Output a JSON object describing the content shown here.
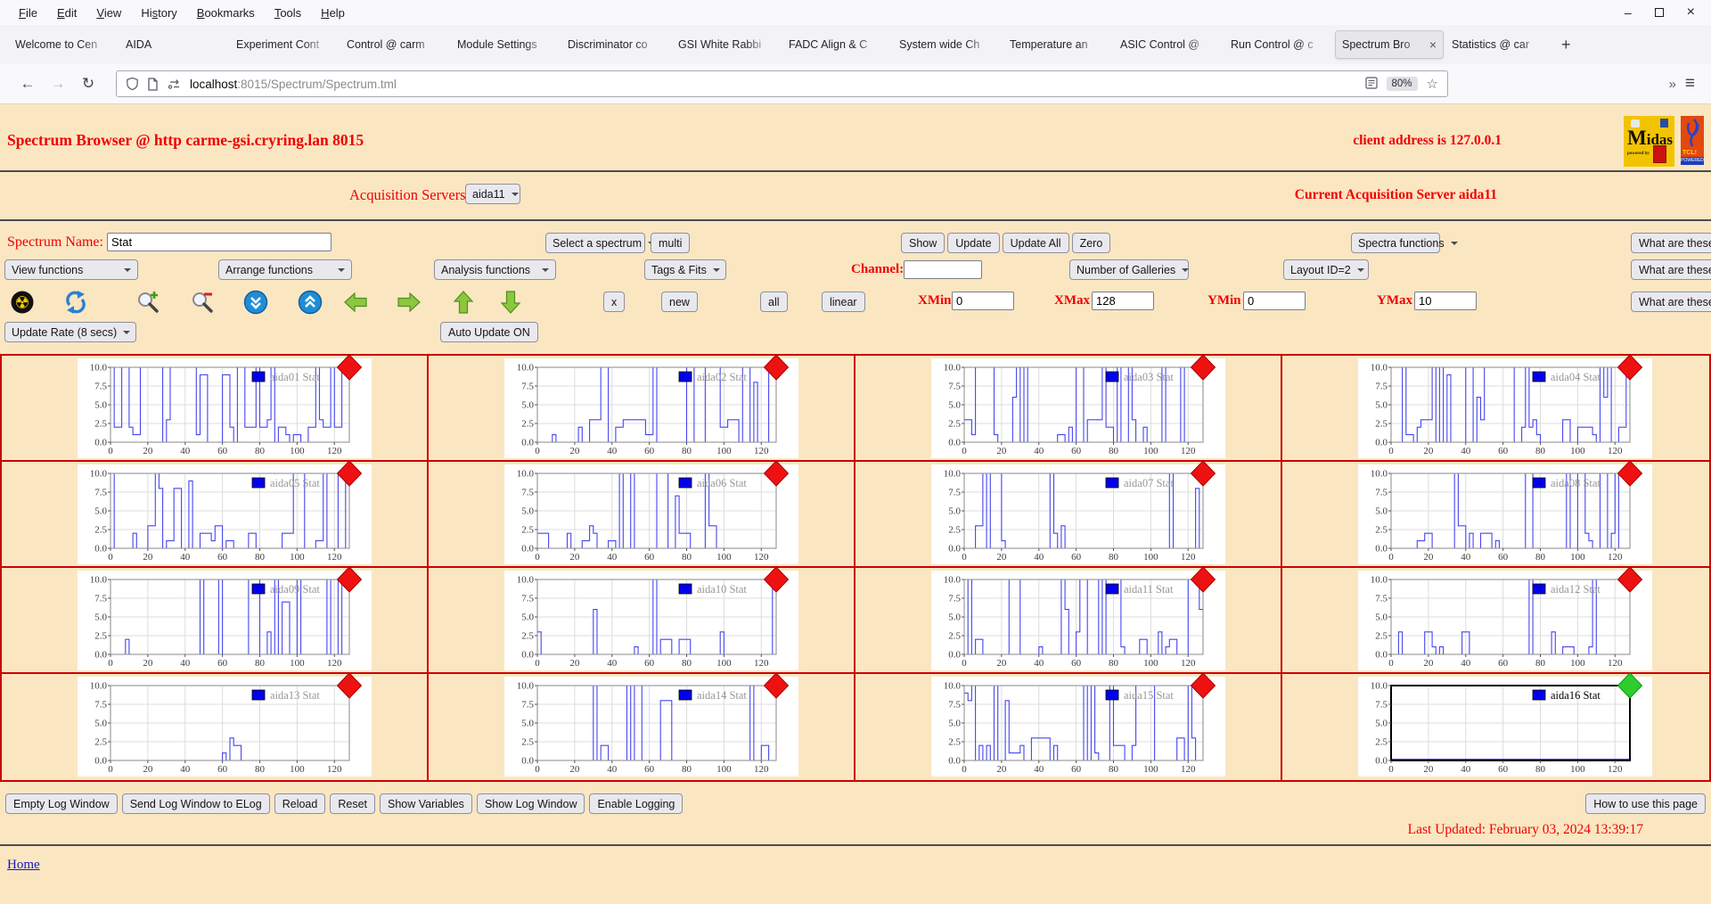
{
  "browser": {
    "menu": [
      {
        "label": "File",
        "accel": 0
      },
      {
        "label": "Edit",
        "accel": 0
      },
      {
        "label": "View",
        "accel": 0
      },
      {
        "label": "History",
        "accel": 2
      },
      {
        "label": "Bookmarks",
        "accel": 0
      },
      {
        "label": "Tools",
        "accel": 0
      },
      {
        "label": "Help",
        "accel": 0
      }
    ],
    "window_controls": {
      "minimize": "–",
      "close": "×"
    },
    "tabs": [
      {
        "label": "Welcome to Cen"
      },
      {
        "label": "AIDA"
      },
      {
        "label": "Experiment Cont"
      },
      {
        "label": "Control @ carm"
      },
      {
        "label": "Module Settings"
      },
      {
        "label": "Discriminator co"
      },
      {
        "label": "GSI White Rabbi"
      },
      {
        "label": "FADC Align & C"
      },
      {
        "label": "System wide Ch"
      },
      {
        "label": "Temperature an"
      },
      {
        "label": "ASIC Control @"
      },
      {
        "label": "Run Control @ c"
      },
      {
        "label": "Spectrum Bro",
        "active": true,
        "close": "×"
      },
      {
        "label": "Statistics @ car"
      }
    ],
    "new_tab": "+",
    "nav": {
      "back": "←",
      "forward": "→",
      "reload": "↻",
      "overflow": "»",
      "menu": "≡",
      "star": "☆"
    },
    "url": {
      "host": "localhost",
      "path": ":8015/Spectrum/Spectrum.tml"
    },
    "zoom": "80%"
  },
  "icons": {
    "radiation-icon": "☢",
    "refresh-icon": "blue circular arrows",
    "zoom-in-icon": "magnifier plus",
    "zoom-out-icon": "magnifier minus",
    "page-down-icon": "blue circle double chevron down",
    "page-up-icon": "blue circle double chevron up",
    "arrow-left-icon": "green arrow left",
    "arrow-right-icon": "green arrow right",
    "arrow-up-icon": "green arrow up",
    "arrow-down-icon": "green arrow down"
  },
  "page": {
    "title": "Spectrum Browser @ http carme-gsi.cryring.lan 8015",
    "client": "client address is 127.0.0.1",
    "logos": {
      "midas_title_first": "M",
      "midas_title_rest": "idas",
      "midas_sub": "powered by",
      "tcl_title": "TCL!",
      "tcl_strip": "POWERED"
    },
    "acq_label": "Acquisition Servers",
    "acq_selected": "aida11",
    "acq_current": "Current Acquisition Server aida11",
    "what_are_these": "What are these?",
    "row1": {
      "name_label": "Spectrum Name:",
      "name_value": "Stat",
      "select": "Select a spectrum",
      "multi": "multi",
      "show": "Show",
      "update": "Update",
      "update_all": "Update All",
      "zero": "Zero",
      "spectra": "Spectra functions"
    },
    "row2": {
      "view": "View functions",
      "arrange": "Arrange functions",
      "analysis": "Analysis functions",
      "tags": "Tags & Fits",
      "channel": "Channel:",
      "channel_value": "",
      "galleries": "Number of Galleries",
      "layout": "Layout ID=2"
    },
    "row3": {
      "x": "x",
      "new": "new",
      "all": "all",
      "linear": "linear",
      "xmin": "XMin",
      "xmin_v": "0",
      "xmax": "XMax",
      "xmax_v": "128",
      "ymin": "YMin",
      "ymin_v": "0",
      "ymax": "YMax",
      "ymax_v": "10"
    },
    "row4": {
      "rate": "Update Rate (8 secs)",
      "auto": "Auto Update ON"
    },
    "footer_buttons": [
      "Empty Log Window",
      "Send Log Window to ELog",
      "Reload",
      "Reset",
      "Show Variables",
      "Show Log Window",
      "Enable Logging"
    ],
    "howto": "How to use this page",
    "last_updated": "Last Updated: February 03, 2024 13:39:17",
    "home": "Home"
  },
  "charts": {
    "type": "line",
    "y_ticks": [
      "10.0",
      "7.5",
      "5.0",
      "2.5",
      "0.0"
    ],
    "x_ticks": [
      0,
      20,
      40,
      60,
      80,
      100,
      120
    ],
    "xlim": [
      0,
      128
    ],
    "ylim": [
      0,
      10
    ],
    "line_color": "#4646f0",
    "legend_swatch": "#0000ee",
    "grid_color": "#dcdcdc",
    "items": [
      {
        "legend": "aida01 Stat",
        "marker": "#ee1111",
        "edge": "#aa0000",
        "text": "#969696",
        "border": "#8a8a8a",
        "bw": 1,
        "seed": 101,
        "density": 0.85
      },
      {
        "legend": "aida02 Stat",
        "marker": "#ee1111",
        "edge": "#aa0000",
        "text": "#969696",
        "border": "#8a8a8a",
        "bw": 1,
        "seed": 102,
        "density": 0.55
      },
      {
        "legend": "aida03 Stat",
        "marker": "#ee1111",
        "edge": "#aa0000",
        "text": "#969696",
        "border": "#8a8a8a",
        "bw": 1,
        "seed": 103,
        "density": 0.5
      },
      {
        "legend": "aida04 Stat",
        "marker": "#ee1111",
        "edge": "#aa0000",
        "text": "#969696",
        "border": "#8a8a8a",
        "bw": 1,
        "seed": 104,
        "density": 0.65
      },
      {
        "legend": "aida05 Stat",
        "marker": "#ee1111",
        "edge": "#aa0000",
        "text": "#969696",
        "border": "#8a8a8a",
        "bw": 1,
        "seed": 105,
        "density": 0.55
      },
      {
        "legend": "aida06 Stat",
        "marker": "#ee1111",
        "edge": "#aa0000",
        "text": "#969696",
        "border": "#8a8a8a",
        "bw": 1,
        "seed": 106,
        "density": 0.3
      },
      {
        "legend": "aida07 Stat",
        "marker": "#ee1111",
        "edge": "#aa0000",
        "text": "#969696",
        "border": "#8a8a8a",
        "bw": 1,
        "seed": 107,
        "density": 0.28
      },
      {
        "legend": "aida08 Stat",
        "marker": "#ee1111",
        "edge": "#aa0000",
        "text": "#969696",
        "border": "#8a8a8a",
        "bw": 1,
        "seed": 108,
        "density": 0.3
      },
      {
        "legend": "aida09 Stat",
        "marker": "#ee1111",
        "edge": "#aa0000",
        "text": "#969696",
        "border": "#8a8a8a",
        "bw": 1,
        "seed": 109,
        "density": 0.18
      },
      {
        "legend": "aida10 Stat",
        "marker": "#ee1111",
        "edge": "#aa0000",
        "text": "#969696",
        "border": "#8a8a8a",
        "bw": 1,
        "seed": 110,
        "density": 0.22
      },
      {
        "legend": "aida11 Stat",
        "marker": "#ee1111",
        "edge": "#aa0000",
        "text": "#969696",
        "border": "#8a8a8a",
        "bw": 1,
        "seed": 111,
        "density": 0.45
      },
      {
        "legend": "aida12 Stat",
        "marker": "#ee1111",
        "edge": "#aa0000",
        "text": "#969696",
        "border": "#8a8a8a",
        "bw": 1,
        "seed": 112,
        "density": 0.22
      },
      {
        "legend": "aida13 Stat",
        "marker": "#ee1111",
        "edge": "#aa0000",
        "text": "#969696",
        "border": "#8a8a8a",
        "bw": 1,
        "seed": 113,
        "density": 0.14
      },
      {
        "legend": "aida14 Stat",
        "marker": "#ee1111",
        "edge": "#aa0000",
        "text": "#969696",
        "border": "#8a8a8a",
        "bw": 1,
        "seed": 114,
        "density": 0.22
      },
      {
        "legend": "aida15 Stat",
        "marker": "#ee1111",
        "edge": "#aa0000",
        "text": "#969696",
        "border": "#8a8a8a",
        "bw": 1,
        "seed": 115,
        "density": 0.6
      },
      {
        "legend": "aida16 Stat",
        "marker": "#2ecc2e",
        "edge": "#0a9a0a",
        "text": "#000000",
        "border": "#000000",
        "bw": 2,
        "seed": 116,
        "density": 0
      }
    ]
  }
}
